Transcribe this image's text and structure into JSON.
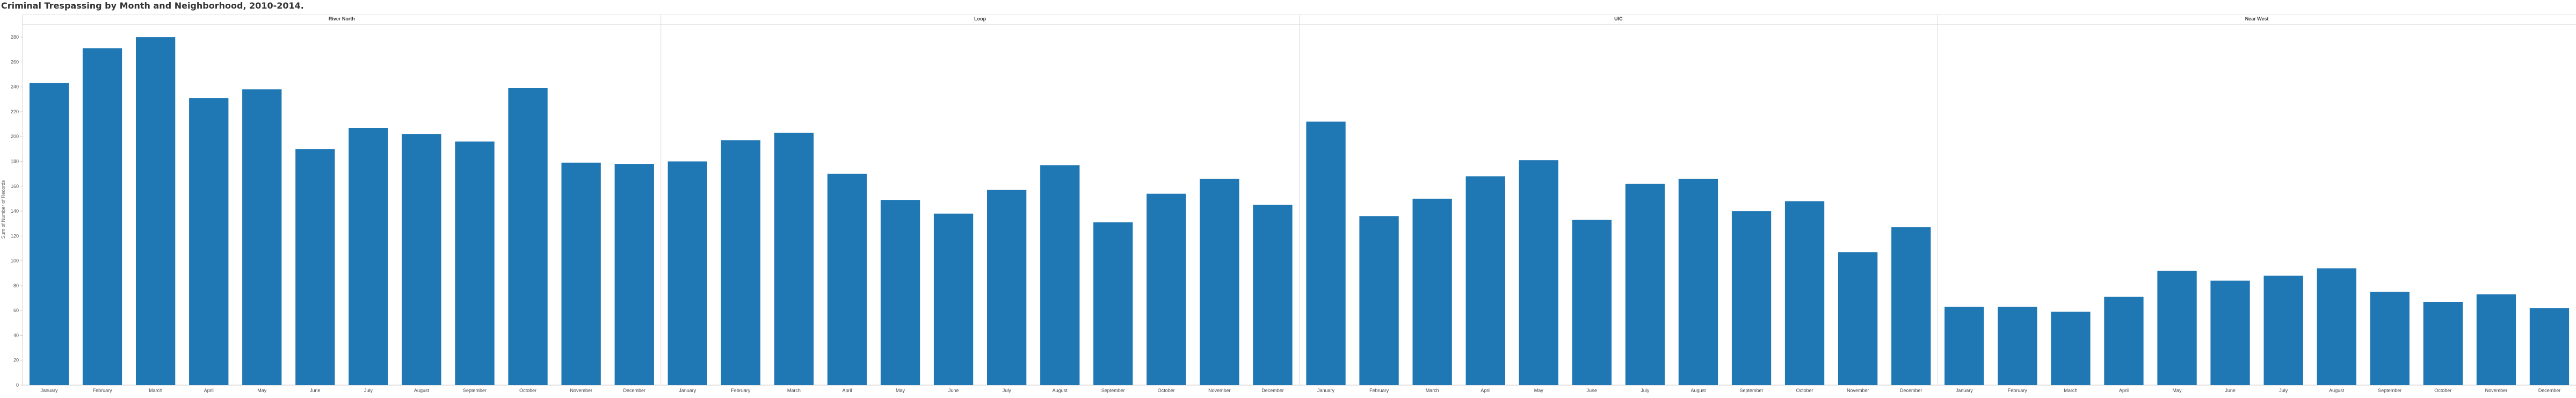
{
  "chart_data": {
    "type": "bar",
    "title": "Criminal Trespassing by Month and Neighborhood, 2010-2014.",
    "ylabel": "Sum of Number of Records",
    "xlabel": "",
    "ylim": [
      0,
      290
    ],
    "yticks": [
      0,
      20,
      40,
      60,
      80,
      100,
      120,
      140,
      160,
      180,
      200,
      220,
      240,
      260,
      280
    ],
    "grid": false,
    "categories": [
      "January",
      "February",
      "March",
      "April",
      "May",
      "June",
      "July",
      "August",
      "September",
      "October",
      "November",
      "December"
    ],
    "bar_color": "#1f77b4",
    "panels": [
      {
        "name": "River North",
        "values": [
          243,
          271,
          280,
          231,
          238,
          190,
          207,
          202,
          196,
          239,
          179,
          178
        ]
      },
      {
        "name": "Loop",
        "values": [
          180,
          197,
          203,
          170,
          149,
          138,
          157,
          177,
          131,
          154,
          166,
          145
        ]
      },
      {
        "name": "UIC",
        "values": [
          212,
          136,
          150,
          168,
          181,
          133,
          162,
          166,
          140,
          148,
          107,
          127
        ]
      },
      {
        "name": "Near West",
        "values": [
          63,
          63,
          59,
          71,
          92,
          84,
          88,
          94,
          75,
          67,
          73,
          62
        ]
      }
    ]
  }
}
